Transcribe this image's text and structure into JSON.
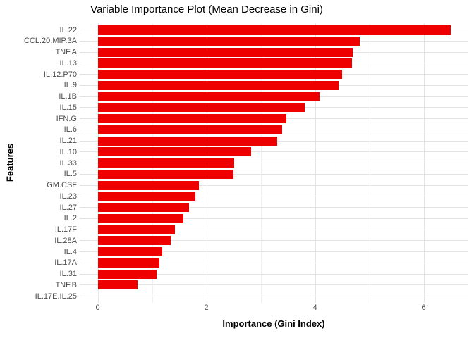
{
  "chart_data": {
    "type": "bar",
    "orientation": "horizontal",
    "title": "Variable Importance Plot (Mean Decrease in Gini)",
    "xlabel": "Importance (Gini Index)",
    "ylabel": "Features",
    "categories": [
      "IL.22",
      "CCL.20.MIP.3A",
      "TNF.A",
      "IL.13",
      "IL.12.P70",
      "IL.9",
      "IL.1B",
      "IL.15",
      "IFN.G",
      "IL.6",
      "IL.21",
      "IL.10",
      "IL.33",
      "IL.5",
      "GM.CSF",
      "IL.23",
      "IL.27",
      "IL.2",
      "IL.17F",
      "IL.28A",
      "IL.4",
      "IL.17A",
      "IL.31",
      "TNF.B",
      "IL.17E.IL.25"
    ],
    "values": [
      6.5,
      4.83,
      4.7,
      4.68,
      4.5,
      4.43,
      4.08,
      3.81,
      3.47,
      3.4,
      3.3,
      2.83,
      2.51,
      2.5,
      1.86,
      1.8,
      1.68,
      1.58,
      1.42,
      1.34,
      1.19,
      1.13,
      1.09,
      0.73,
      0.0
    ],
    "x_ticks": [
      0,
      2,
      4,
      6
    ],
    "x_minor_ticks": [
      1,
      3,
      5
    ],
    "xlim": [
      -0.33,
      6.83
    ],
    "bar_color": "#ee0000",
    "grid": true,
    "legend": false
  }
}
